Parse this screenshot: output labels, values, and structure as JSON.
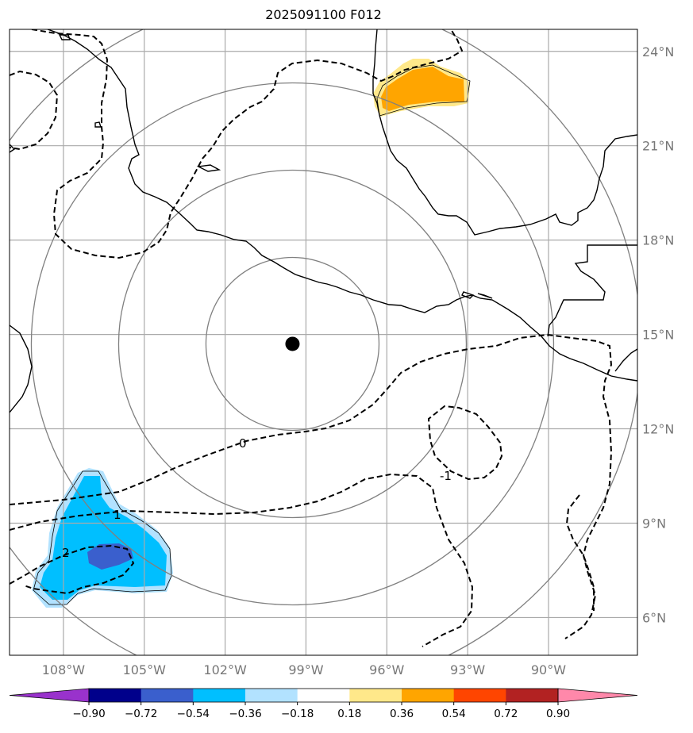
{
  "title": "2025091100 F012",
  "map": {
    "lon_range": [
      -110,
      -86.7
    ],
    "lat_range": [
      4.8,
      24.7
    ],
    "center_marker": {
      "lon": -99.5,
      "lat": 14.7
    },
    "range_circles_count": 4,
    "gridline_color": "#aaaaaa",
    "circle_color": "#808080",
    "coastline_color": "#000000"
  },
  "lat_labels": [
    {
      "value": 24,
      "text": "24°N"
    },
    {
      "value": 21,
      "text": "21°N"
    },
    {
      "value": 18,
      "text": "18°N"
    },
    {
      "value": 15,
      "text": "15°N"
    },
    {
      "value": 12,
      "text": "12°N"
    },
    {
      "value": 9,
      "text": "9°N"
    },
    {
      "value": 6,
      "text": "6°N"
    }
  ],
  "lon_labels": [
    {
      "value": -108,
      "text": "108°W"
    },
    {
      "value": -105,
      "text": "105°W"
    },
    {
      "value": -102,
      "text": "102°W"
    },
    {
      "value": -99,
      "text": "99°W"
    },
    {
      "value": -96,
      "text": "96°W"
    },
    {
      "value": -93,
      "text": "93°W"
    },
    {
      "value": -90,
      "text": "90°W"
    }
  ],
  "contour_labels": [
    {
      "text": "0"
    },
    {
      "text": "-1"
    },
    {
      "text": "1"
    },
    {
      "text": "2"
    }
  ],
  "colorbar": {
    "colors": [
      "#9932cc",
      "#00008b",
      "#3a5fcd",
      "#00bfff",
      "#b2e2ff",
      "#ffffff",
      "#ffe88a",
      "#ffa500",
      "#ff4500",
      "#b22222",
      "#ff88aa"
    ],
    "labels": [
      "−0.90",
      "−0.72",
      "−0.54",
      "−0.36",
      "−0.18",
      "0.18",
      "0.36",
      "0.54",
      "0.72",
      "0.90"
    ]
  }
}
